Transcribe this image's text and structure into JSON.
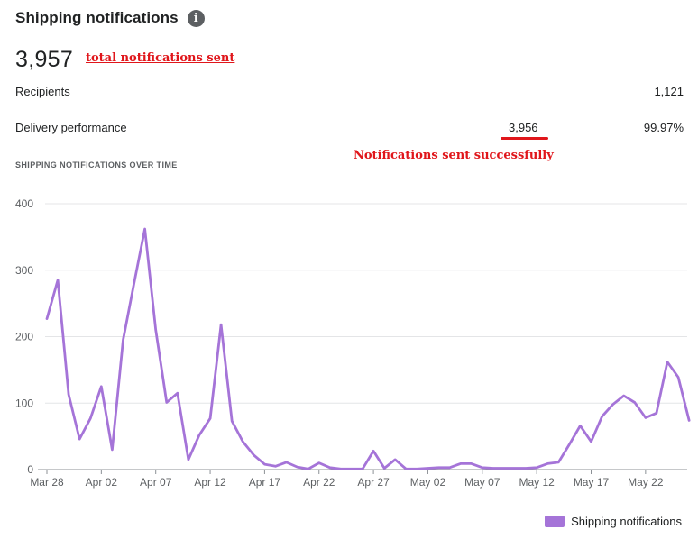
{
  "header": {
    "title": "Shipping notifications",
    "info_icon": "i"
  },
  "summary": {
    "total": "3,957",
    "total_annotation": "total notifications sent",
    "recipients_label": "Recipients",
    "recipients_value": "1,121",
    "delivery_label": "Delivery performance",
    "delivery_count": "3,956",
    "delivery_percent": "99.97%",
    "delivery_annotation": "Notifications sent successfully"
  },
  "section_title": "SHIPPING NOTIFICATIONS OVER TIME",
  "colors": {
    "series": "#a574d8",
    "annotation": "#e0161b",
    "grid": "#e4e5e7"
  },
  "chart_data": {
    "type": "line",
    "title": "",
    "xlabel": "",
    "ylabel": "",
    "ylim": [
      0,
      400
    ],
    "yticks": [
      "0",
      "100",
      "200",
      "300",
      "400"
    ],
    "xticks": [
      "Mar 28",
      "Apr 02",
      "Apr 07",
      "Apr 12",
      "Apr 17",
      "Apr 22",
      "Apr 27",
      "May 02",
      "May 07",
      "May 12",
      "May 17",
      "May 22"
    ],
    "grid": true,
    "legend_position": "bottom-right",
    "series": [
      {
        "name": "Shipping notifications",
        "values": [
          227,
          285,
          113,
          46,
          77,
          125,
          30,
          195,
          280,
          362,
          210,
          101,
          115,
          15,
          52,
          77,
          218,
          73,
          42,
          22,
          8,
          5,
          11,
          4,
          1,
          10,
          3,
          1,
          1,
          1,
          28,
          2,
          15,
          1,
          1,
          2,
          3,
          3,
          9,
          9,
          3,
          2,
          2,
          2,
          2,
          3,
          9,
          11,
          38,
          66,
          42,
          80,
          98,
          111,
          101,
          78,
          85,
          162,
          139,
          74
        ]
      }
    ]
  }
}
